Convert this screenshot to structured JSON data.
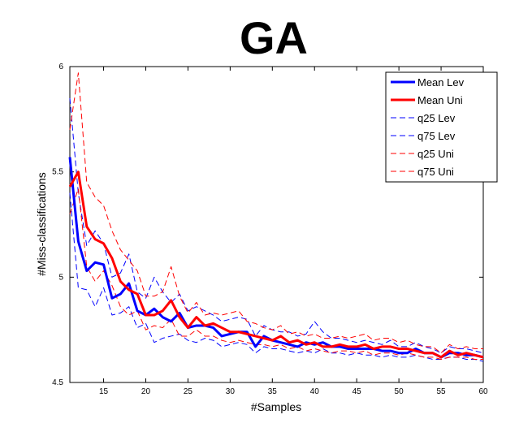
{
  "chart_data": {
    "type": "line",
    "title": "GA",
    "xlabel": "#Samples",
    "ylabel": "#Miss-classifications",
    "xlim": [
      11,
      60
    ],
    "ylim": [
      4.5,
      6
    ],
    "xticks": [
      15,
      20,
      25,
      30,
      35,
      40,
      45,
      50,
      55,
      60
    ],
    "yticks": [
      4.5,
      5,
      5.5,
      6
    ],
    "ytick_labels": [
      "4.5",
      "5",
      "5.5",
      "6"
    ],
    "legend_position": "top-right",
    "x": [
      11,
      12,
      13,
      14,
      15,
      16,
      17,
      18,
      19,
      20,
      21,
      22,
      23,
      24,
      25,
      26,
      27,
      28,
      29,
      30,
      31,
      32,
      33,
      34,
      35,
      36,
      37,
      38,
      39,
      40,
      41,
      42,
      43,
      44,
      45,
      46,
      47,
      48,
      49,
      50,
      51,
      52,
      53,
      54,
      55,
      56,
      57,
      58,
      59,
      60
    ],
    "series": [
      {
        "name": "Mean Lev",
        "color": "#0000ff",
        "style": "solid",
        "width": 3,
        "values": [
          5.57,
          5.17,
          5.03,
          5.07,
          5.06,
          4.9,
          4.92,
          4.97,
          4.84,
          4.82,
          4.85,
          4.81,
          4.79,
          4.83,
          4.76,
          4.77,
          4.77,
          4.76,
          4.72,
          4.73,
          4.74,
          4.74,
          4.67,
          4.72,
          4.7,
          4.69,
          4.68,
          4.67,
          4.69,
          4.68,
          4.69,
          4.67,
          4.67,
          4.66,
          4.66,
          4.66,
          4.66,
          4.65,
          4.65,
          4.64,
          4.64,
          4.66,
          4.64,
          4.64,
          4.62,
          4.64,
          4.64,
          4.63,
          4.63,
          4.62
        ]
      },
      {
        "name": "Mean Uni",
        "color": "#ff0000",
        "style": "solid",
        "width": 3,
        "values": [
          5.43,
          5.5,
          5.24,
          5.18,
          5.16,
          5.09,
          4.98,
          4.94,
          4.92,
          4.82,
          4.82,
          4.84,
          4.89,
          4.81,
          4.76,
          4.81,
          4.77,
          4.78,
          4.76,
          4.74,
          4.74,
          4.73,
          4.72,
          4.71,
          4.7,
          4.72,
          4.69,
          4.7,
          4.68,
          4.69,
          4.67,
          4.67,
          4.68,
          4.67,
          4.67,
          4.68,
          4.66,
          4.67,
          4.67,
          4.66,
          4.66,
          4.65,
          4.64,
          4.64,
          4.62,
          4.65,
          4.63,
          4.64,
          4.63,
          4.62
        ]
      },
      {
        "name": "q25 Lev",
        "color": "#0000ff",
        "style": "dashed",
        "width": 1,
        "values": [
          5.4,
          4.95,
          4.94,
          4.86,
          4.95,
          4.82,
          4.83,
          4.86,
          4.76,
          4.78,
          4.69,
          4.71,
          4.72,
          4.73,
          4.7,
          4.69,
          4.71,
          4.7,
          4.67,
          4.68,
          4.69,
          4.68,
          4.64,
          4.67,
          4.66,
          4.66,
          4.65,
          4.64,
          4.65,
          4.64,
          4.66,
          4.64,
          4.64,
          4.63,
          4.64,
          4.63,
          4.63,
          4.62,
          4.63,
          4.62,
          4.62,
          4.63,
          4.62,
          4.61,
          4.61,
          4.62,
          4.62,
          4.61,
          4.61,
          4.6
        ]
      },
      {
        "name": "q75 Lev",
        "color": "#0000ff",
        "style": "dashed",
        "width": 1,
        "values": [
          5.85,
          5.4,
          5.15,
          5.22,
          5.16,
          5.0,
          5.02,
          5.11,
          4.93,
          4.9,
          5.0,
          4.93,
          4.88,
          4.92,
          4.84,
          4.86,
          4.84,
          4.82,
          4.79,
          4.8,
          4.81,
          4.8,
          4.72,
          4.77,
          4.75,
          4.74,
          4.74,
          4.72,
          4.73,
          4.79,
          4.74,
          4.71,
          4.71,
          4.7,
          4.69,
          4.7,
          4.69,
          4.68,
          4.7,
          4.67,
          4.67,
          4.69,
          4.67,
          4.66,
          4.64,
          4.67,
          4.66,
          4.66,
          4.65,
          4.64
        ]
      },
      {
        "name": "q25 Uni",
        "color": "#ff0000",
        "style": "dashed",
        "width": 1,
        "values": [
          5.3,
          5.42,
          5.05,
          4.98,
          5.03,
          4.96,
          4.86,
          4.82,
          4.84,
          4.75,
          4.77,
          4.76,
          4.8,
          4.72,
          4.72,
          4.75,
          4.72,
          4.72,
          4.7,
          4.69,
          4.7,
          4.69,
          4.68,
          4.68,
          4.67,
          4.68,
          4.66,
          4.67,
          4.65,
          4.66,
          4.65,
          4.64,
          4.65,
          4.65,
          4.64,
          4.65,
          4.63,
          4.64,
          4.64,
          4.63,
          4.64,
          4.63,
          4.62,
          4.62,
          4.61,
          4.62,
          4.62,
          4.62,
          4.61,
          4.61
        ]
      },
      {
        "name": "q75 Uni",
        "color": "#ff0000",
        "style": "dashed",
        "width": 1,
        "values": [
          5.7,
          5.97,
          5.45,
          5.38,
          5.34,
          5.22,
          5.13,
          5.08,
          5.03,
          4.91,
          4.91,
          4.93,
          5.05,
          4.91,
          4.83,
          4.88,
          4.82,
          4.83,
          4.82,
          4.83,
          4.84,
          4.79,
          4.78,
          4.76,
          4.75,
          4.77,
          4.73,
          4.74,
          4.72,
          4.73,
          4.71,
          4.71,
          4.72,
          4.71,
          4.72,
          4.73,
          4.7,
          4.71,
          4.71,
          4.69,
          4.7,
          4.68,
          4.67,
          4.67,
          4.64,
          4.68,
          4.66,
          4.67,
          4.66,
          4.66
        ]
      }
    ]
  }
}
